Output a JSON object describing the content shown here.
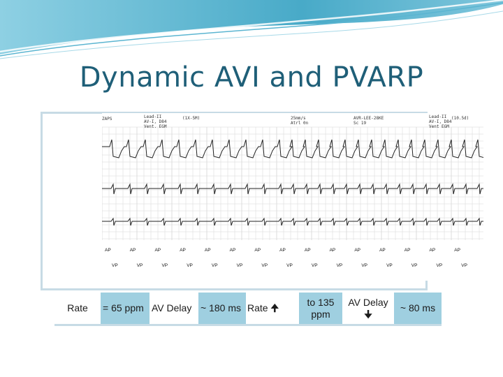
{
  "slide": {
    "title": "Dynamic AVI and PVARP"
  },
  "strip": {
    "header_labels": [
      "ZAPS",
      "Lead-II",
      "AV-I, D84",
      "Vent. EGM",
      "(1X-5M)",
      "25mm/s",
      "Atrl 0n",
      "AVR-LEE-28KE",
      "Sc 19",
      "Lead-II",
      "AV-I, D84",
      "Vent EGM",
      "(10.5d)"
    ],
    "markers_upper": [
      "AP",
      "AP",
      "AP",
      "AP",
      "AP",
      "AP",
      "AP",
      "AP",
      "AP",
      "AP",
      "AP",
      "AP",
      "AP",
      "AP",
      "AP"
    ],
    "markers_lower": [
      "VP",
      "VP",
      "VP",
      "VP",
      "VP",
      "VP",
      "VP",
      "VP",
      "VP",
      "VP",
      "VP",
      "VP",
      "VP",
      "VP",
      "VP"
    ]
  },
  "table": {
    "rate_label": "Rate",
    "rate_value": "= 65 ppm",
    "av_delay_label": "AV Delay",
    "av_delay_value": "~ 180 ms",
    "rate_up_label": "Rate",
    "rate_up_arrow": "🠉",
    "rate_to": "to 135 ppm",
    "av_delay_label_2": "AV Delay",
    "av_delay_down_arrow": "🠋",
    "av_delay_value_2": "~ 80 ms",
    "accent_color": "#9fcfe0",
    "frame_color": "#c7dbe5"
  }
}
